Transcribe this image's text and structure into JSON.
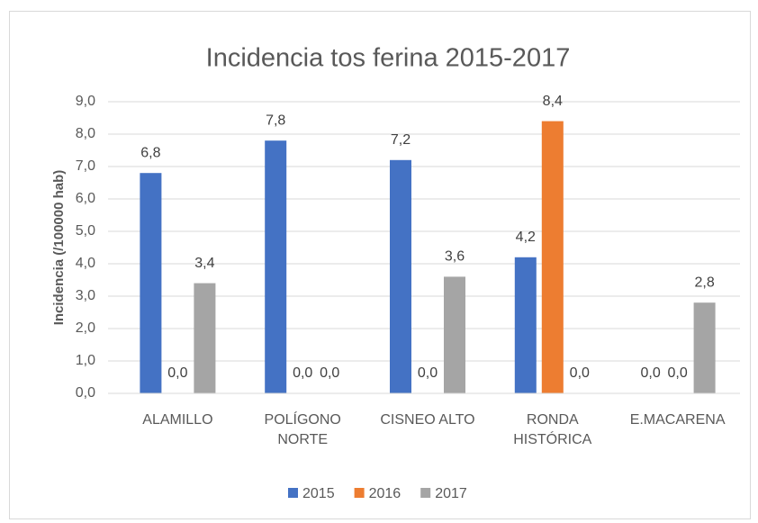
{
  "chart_data": {
    "type": "bar",
    "title": "Incidencia tos ferina 2015-2017",
    "y_label": "Incidencia (/100000 hab)",
    "categories": [
      "ALAMILLO",
      "POLÍGONO NORTE",
      "CISNEO ALTO",
      "RONDA HISTÓRICA",
      "E.MACARENA"
    ],
    "series": [
      {
        "name": "2015",
        "color": "#4472c4",
        "values": [
          6.8,
          7.8,
          7.2,
          4.2,
          0.0
        ],
        "value_labels": [
          "6,8",
          "7,8",
          "7,2",
          "4,2",
          "0,0"
        ]
      },
      {
        "name": "2016",
        "color": "#ed7d31",
        "values": [
          0.0,
          0.0,
          0.0,
          8.4,
          0.0
        ],
        "value_labels": [
          "0,0",
          "0,0",
          "0,0",
          "8,4",
          "0,0"
        ]
      },
      {
        "name": "2017",
        "color": "#a5a5a5",
        "values": [
          3.4,
          0.0,
          3.6,
          0.0,
          2.8
        ],
        "value_labels": [
          "3,4",
          "0,0",
          "3,6",
          "0,0",
          "2,8"
        ]
      }
    ],
    "ylim": [
      0,
      9
    ],
    "yticks": [
      {
        "value": 0,
        "label": "0,0"
      },
      {
        "value": 1,
        "label": "1,0"
      },
      {
        "value": 2,
        "label": "2,0"
      },
      {
        "value": 3,
        "label": "3,0"
      },
      {
        "value": 4,
        "label": "4,0"
      },
      {
        "value": 5,
        "label": "5,0"
      },
      {
        "value": 6,
        "label": "6,0"
      },
      {
        "value": 7,
        "label": "7,0"
      },
      {
        "value": 8,
        "label": "8,0"
      },
      {
        "value": 9,
        "label": "9,0"
      }
    ],
    "grid": true,
    "legend": "bottom"
  }
}
